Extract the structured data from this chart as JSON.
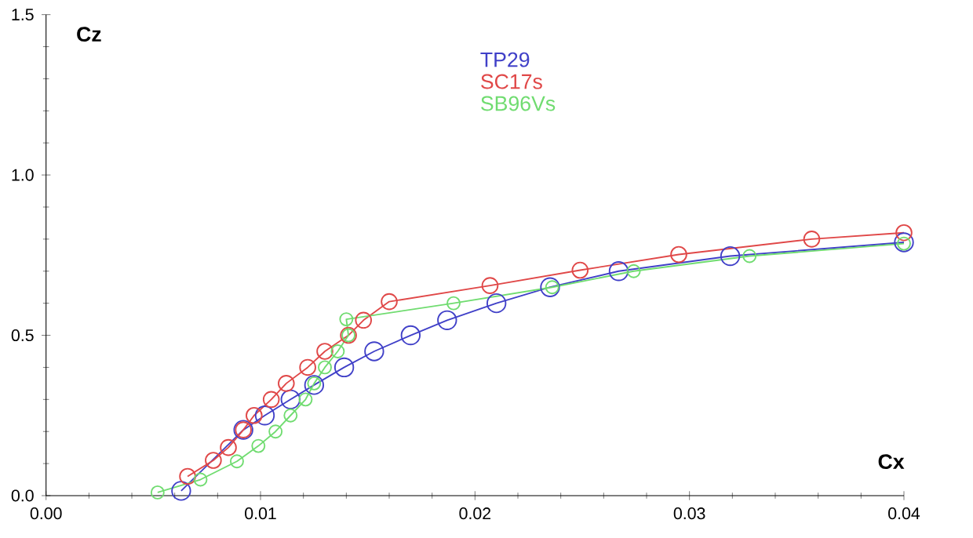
{
  "chart_data": {
    "type": "line",
    "xlabel": "Cx",
    "ylabel": "Cz",
    "xlim": [
      0,
      0.04
    ],
    "ylim": [
      0,
      1.5
    ],
    "xticks": [
      {
        "value": 0,
        "label": "0.00"
      },
      {
        "value": 0.01,
        "label": "0.01"
      },
      {
        "value": 0.02,
        "label": "0.02"
      },
      {
        "value": 0.03,
        "label": "0.03"
      },
      {
        "value": 0.04,
        "label": "0.04"
      }
    ],
    "yticks": [
      {
        "value": 0,
        "label": "0.0"
      },
      {
        "value": 0.5,
        "label": "0.5"
      },
      {
        "value": 1,
        "label": "1.0"
      },
      {
        "value": 1.5,
        "label": "1.5"
      }
    ],
    "grid": false,
    "legend": "top",
    "marker": "circle",
    "line_style": "solid",
    "series": [
      {
        "name": "TP29",
        "color": "#4040c8",
        "x": [
          0.0063,
          0.0092,
          0.0102,
          0.0114,
          0.0125,
          0.0139,
          0.0153,
          0.017,
          0.0187,
          0.021,
          0.0235,
          0.0267,
          0.0319,
          0.04
        ],
        "values": [
          0.015,
          0.205,
          0.25,
          0.3,
          0.345,
          0.4,
          0.45,
          0.5,
          0.547,
          0.6,
          0.65,
          0.7,
          0.747,
          0.79
        ]
      },
      {
        "name": "SC17s",
        "color": "#e04848",
        "x": [
          0.0066,
          0.0078,
          0.0085,
          0.0092,
          0.0097,
          0.0105,
          0.0112,
          0.0122,
          0.013,
          0.0141,
          0.0148,
          0.016,
          0.0207,
          0.0249,
          0.0295,
          0.0357,
          0.04
        ],
        "values": [
          0.06,
          0.11,
          0.15,
          0.205,
          0.25,
          0.3,
          0.35,
          0.4,
          0.45,
          0.5,
          0.547,
          0.605,
          0.655,
          0.703,
          0.752,
          0.8,
          0.82
        ]
      },
      {
        "name": "SB96Vs",
        "color": "#70dc70",
        "x": [
          0.0052,
          0.0072,
          0.0089,
          0.0099,
          0.0107,
          0.0114,
          0.0121,
          0.0125,
          0.013,
          0.0136,
          0.0141,
          0.014,
          0.019,
          0.0236,
          0.0274,
          0.0328,
          0.04
        ],
        "values": [
          0.01,
          0.05,
          0.107,
          0.155,
          0.2,
          0.25,
          0.3,
          0.35,
          0.4,
          0.45,
          0.5,
          0.55,
          0.6,
          0.65,
          0.7,
          0.747,
          0.786
        ]
      }
    ]
  }
}
